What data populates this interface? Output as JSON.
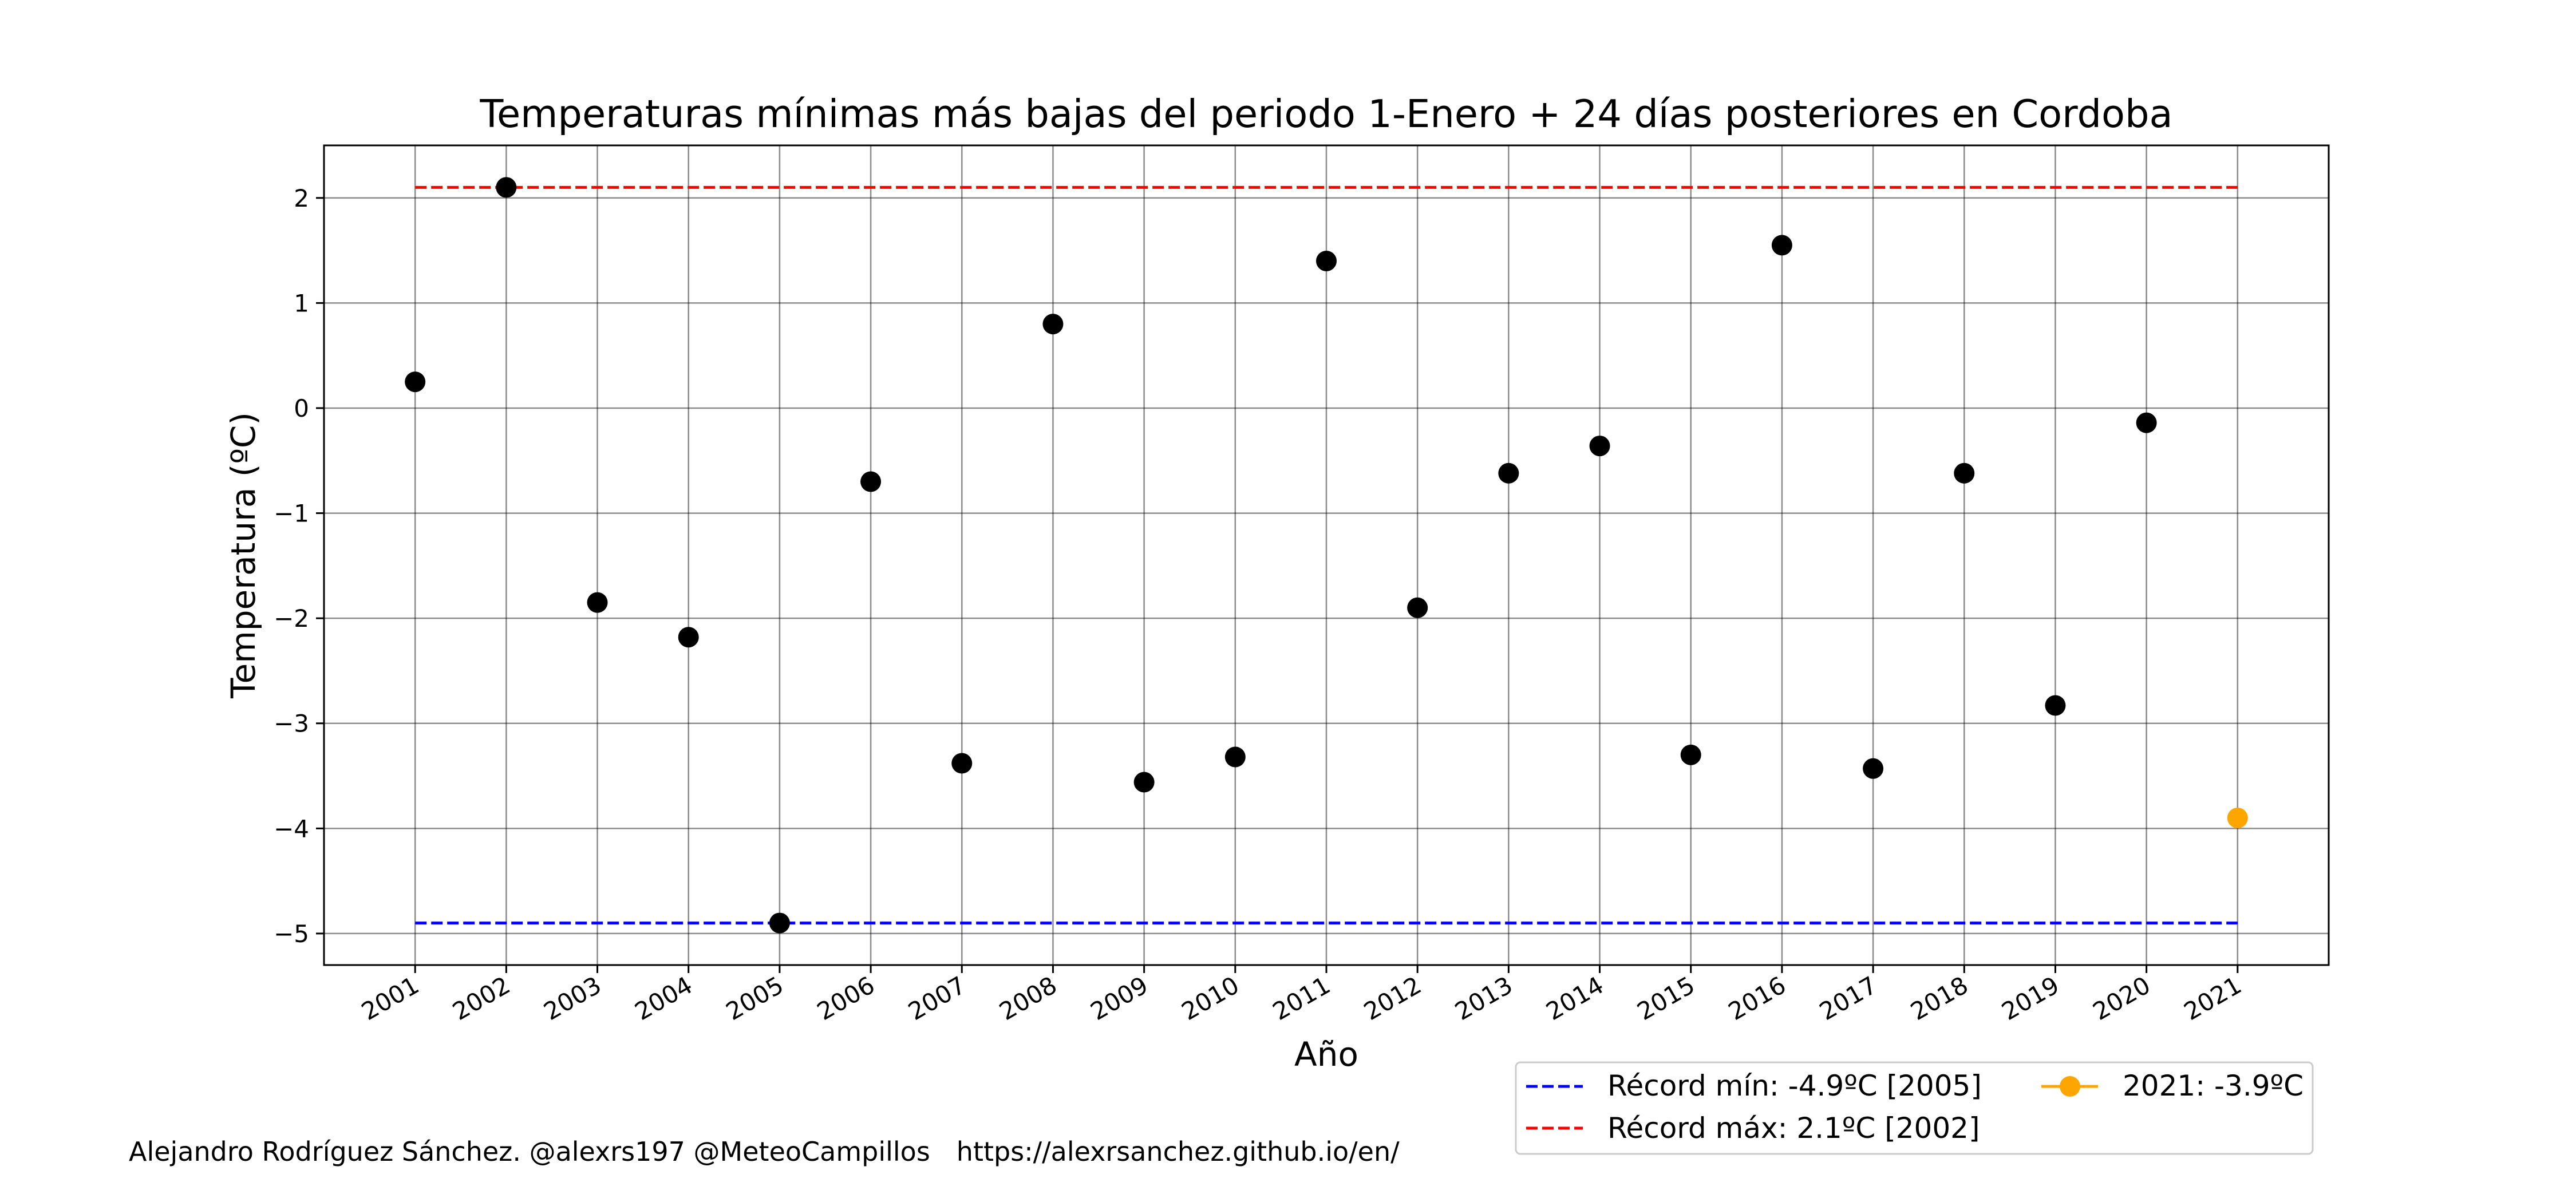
{
  "chart_data": {
    "type": "scatter",
    "title": "Temperaturas mínimas más bajas del periodo 1-Enero + 24 días posteriores en Cordoba",
    "xlabel": "Año",
    "ylabel": "Temperatura (ºC)",
    "x": [
      2001,
      2002,
      2003,
      2004,
      2005,
      2006,
      2007,
      2008,
      2009,
      2010,
      2011,
      2012,
      2013,
      2014,
      2015,
      2016,
      2017,
      2018,
      2019,
      2020,
      2021
    ],
    "x_tick_labels": [
      "2001",
      "2002",
      "2003",
      "2004",
      "2005",
      "2006",
      "2007",
      "2008",
      "2009",
      "2010",
      "2011",
      "2012",
      "2013",
      "2014",
      "2015",
      "2016",
      "2017",
      "2018",
      "2019",
      "2020",
      "2021"
    ],
    "xlim": [
      2000.0,
      2022.0
    ],
    "ylim": [
      -5.3,
      2.5
    ],
    "y_ticks": [
      2,
      1,
      0,
      -1,
      -2,
      -3,
      -4,
      -5
    ],
    "y_tick_labels": [
      "2",
      "1",
      "0",
      "−1",
      "−2",
      "−3",
      "−4",
      "−5"
    ],
    "grid": true,
    "series": [
      {
        "values": [
          0.25,
          2.1,
          -1.85,
          -2.18,
          -4.9,
          -0.7,
          -3.38,
          0.8,
          -3.56,
          -3.32,
          1.4,
          -1.9,
          -0.62,
          -0.36,
          -3.3,
          1.55,
          -3.43,
          -0.62,
          -2.83,
          -0.14,
          null
        ],
        "color": "#000000"
      },
      {
        "name": "2021: -3.9ºC",
        "x": [
          2021
        ],
        "values": [
          -3.9
        ],
        "color": "#FFA500"
      }
    ],
    "reference_lines": [
      {
        "name": "Récord mín: -4.9ºC [2005]",
        "value": -4.9,
        "x_range": [
          2001,
          2021
        ],
        "color": "#0000FF",
        "style": "dashed"
      },
      {
        "name": "Récord máx: 2.1ºC [2002]",
        "value": 2.1,
        "x_range": [
          2001,
          2021
        ],
        "color": "#FF0000",
        "style": "dashed"
      }
    ],
    "legend": {
      "placement": "bottom-right, outside plot area",
      "entries": [
        "Récord mín: -4.9ºC [2005]",
        "Récord máx: 2.1ºC [2002]",
        "2021: -3.9ºC"
      ]
    }
  },
  "footer": {
    "author": "Alejandro Rodríguez Sánchez. @alexrs197 @MeteoCampillos",
    "url": "https://alexrsanchez.github.io/en/"
  }
}
